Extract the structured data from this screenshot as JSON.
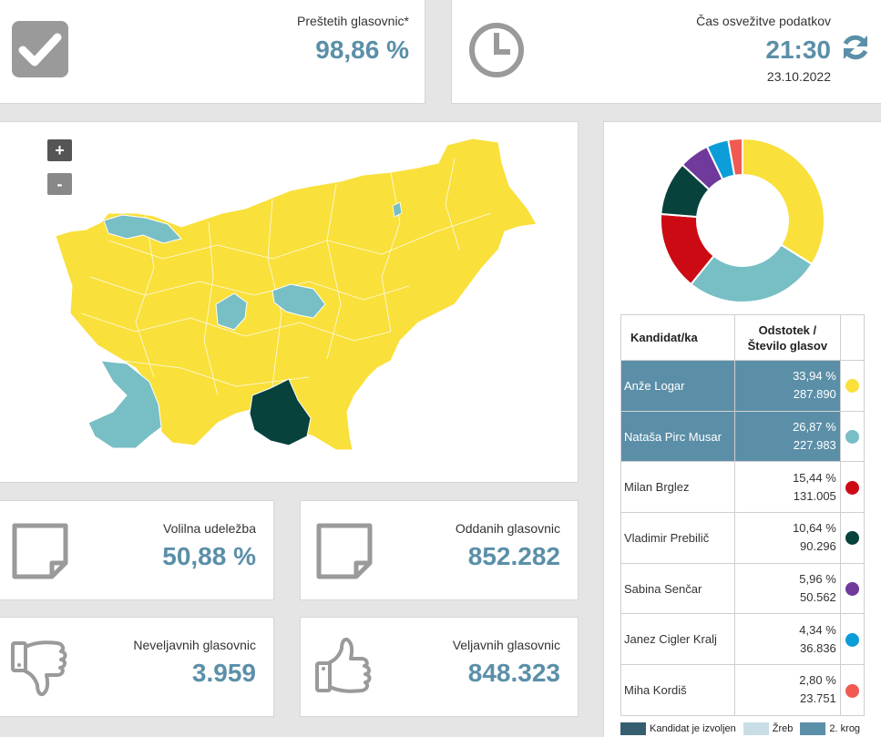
{
  "top": {
    "counted": {
      "label": "Preštetih glasovnic*",
      "value": "98,86 %"
    },
    "refresh": {
      "label": "Čas osvežitve podatkov",
      "time": "21:30",
      "date": "23.10.2022"
    }
  },
  "map": {
    "zoom_in": "+",
    "zoom_out": "-"
  },
  "stats": {
    "turnout": {
      "label": "Volilna udeležba",
      "value": "50,88 %"
    },
    "cast": {
      "label": "Oddanih glasovnic",
      "value": "852.282"
    },
    "invalid": {
      "label": "Neveljavnih glasovnic",
      "value": "3.959"
    },
    "valid": {
      "label": "Veljavnih glasovnic",
      "value": "848.323"
    }
  },
  "table": {
    "header_name": "Kandidat/ka",
    "header_pct_1": "Odstotek /",
    "header_pct_2": "Število glasov",
    "rows": [
      {
        "name": "Anže Logar",
        "pct": "33,94 %",
        "votes": "287.890",
        "color": "#f9e03b",
        "won": true
      },
      {
        "name": "Nataša Pirc Musar",
        "pct": "26,87 %",
        "votes": "227.983",
        "color": "#78bec5",
        "won": true
      },
      {
        "name": "Milan Brglez",
        "pct": "15,44 %",
        "votes": "131.005",
        "color": "#cc0a14",
        "won": false
      },
      {
        "name": "Vladimir Prebilič",
        "pct": "10,64 %",
        "votes": "90.296",
        "color": "#07423d",
        "won": false
      },
      {
        "name": "Sabina Senčar",
        "pct": "5,96 %",
        "votes": "50.562",
        "color": "#6f3a9c",
        "won": false
      },
      {
        "name": "Janez Cigler Kralj",
        "pct": "4,34 %",
        "votes": "36.836",
        "color": "#0c9dd8",
        "won": false
      },
      {
        "name": "Miha Kordiš",
        "pct": "2,80 %",
        "votes": "23.751",
        "color": "#f05a50",
        "won": false
      }
    ]
  },
  "legend": {
    "elected": "Kandidat je izvoljen",
    "draw": "Žreb",
    "runoff": "2. krog",
    "colors": {
      "elected": "#355f70",
      "draw": "#c9dde5",
      "runoff": "#5b8fa8"
    }
  },
  "chart_data": {
    "type": "pie",
    "categories": [
      "Anže Logar",
      "Nataša Pirc Musar",
      "Milan Brglez",
      "Vladimir Prebilič",
      "Sabina Senčar",
      "Janez Cigler Kralj",
      "Miha Kordiš"
    ],
    "values": [
      33.94,
      26.87,
      15.44,
      10.64,
      5.96,
      4.34,
      2.8
    ],
    "colors": [
      "#f9e03b",
      "#78bec5",
      "#cc0a14",
      "#07423d",
      "#6f3a9c",
      "#0c9dd8",
      "#f05a50"
    ]
  }
}
